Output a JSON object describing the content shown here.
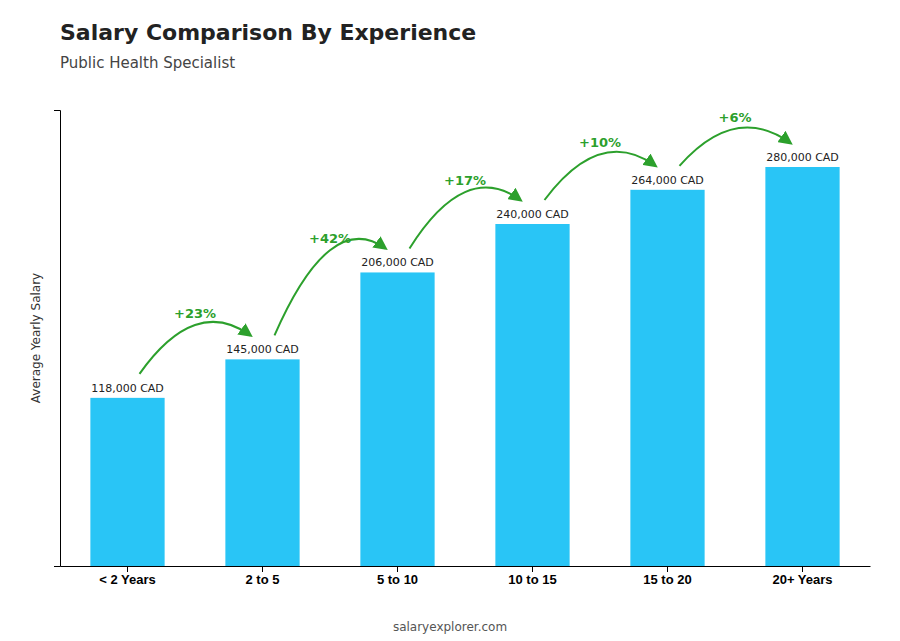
{
  "chart_data": {
    "type": "bar",
    "title": "Salary Comparison By Experience",
    "subtitle": "Public Health Specialist",
    "ylabel": "Average Yearly Salary",
    "categories": [
      "< 2 Years",
      "2 to 5",
      "5 to 10",
      "10 to 15",
      "15 to 20",
      "20+ Years"
    ],
    "values": [
      118000,
      145000,
      206000,
      240000,
      264000,
      280000
    ],
    "value_labels": [
      "118,000 CAD",
      "145,000 CAD",
      "206,000 CAD",
      "240,000 CAD",
      "264,000 CAD",
      "280,000 CAD"
    ],
    "data_labels": true,
    "color": "#29c5f6",
    "ylim": [
      0,
      320000
    ],
    "tick_labels": "x",
    "annotations": [
      "+23%",
      "+42%",
      "+17%",
      "+10%",
      "+6%"
    ],
    "footer": "salaryexplorer.com"
  }
}
